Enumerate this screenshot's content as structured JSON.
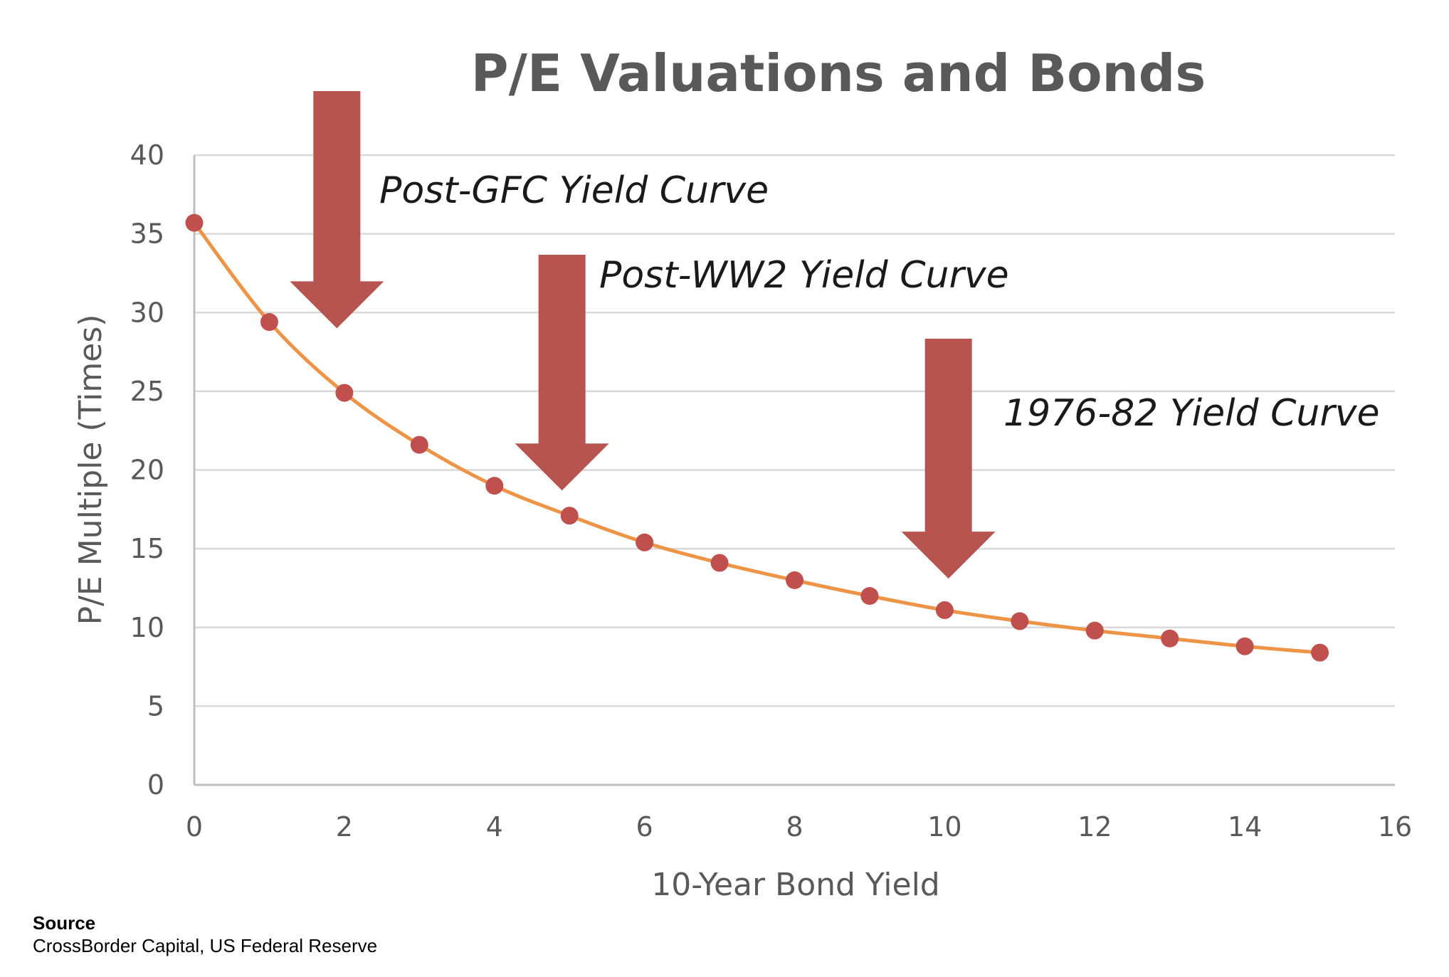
{
  "chart_data": {
    "type": "line",
    "title": "P/E Valuations and Bonds",
    "xlabel": "10-Year Bond Yield",
    "ylabel": "P/E Multiple (Times)",
    "xlim": [
      0,
      16
    ],
    "ylim": [
      0,
      40
    ],
    "x_ticks": [
      "0",
      "2",
      "4",
      "6",
      "8",
      "10",
      "12",
      "14",
      "16"
    ],
    "y_ticks": [
      "0",
      "5",
      "10",
      "15",
      "20",
      "25",
      "30",
      "35",
      "40"
    ],
    "grid": "horizontal",
    "series": [
      {
        "x": [
          0,
          1,
          2,
          3,
          4,
          5,
          6,
          7,
          8,
          9,
          10,
          11,
          12,
          13,
          14,
          15
        ],
        "y": [
          35.7,
          29.4,
          24.9,
          21.6,
          19.0,
          17.1,
          15.4,
          14.1,
          13.0,
          12.0,
          11.1,
          10.4,
          9.8,
          9.3,
          8.8,
          8.4
        ],
        "line_color": "#ED9447",
        "marker_color": "#C0504D"
      }
    ],
    "annotations": [
      {
        "label": "Post-GFC Yield Curve",
        "x": 1.9,
        "arrow_tip_y": 29
      },
      {
        "label": "Post-WW2 Yield Curve",
        "x": 4.9,
        "arrow_tip_y": 18.7
      },
      {
        "label": "1976-82 Yield Curve",
        "x": 10.05,
        "arrow_tip_y": 13.1
      }
    ],
    "arrow_color": "#B85450"
  },
  "source": {
    "heading": "Source",
    "text": "CrossBorder Capital, US Federal Reserve"
  }
}
